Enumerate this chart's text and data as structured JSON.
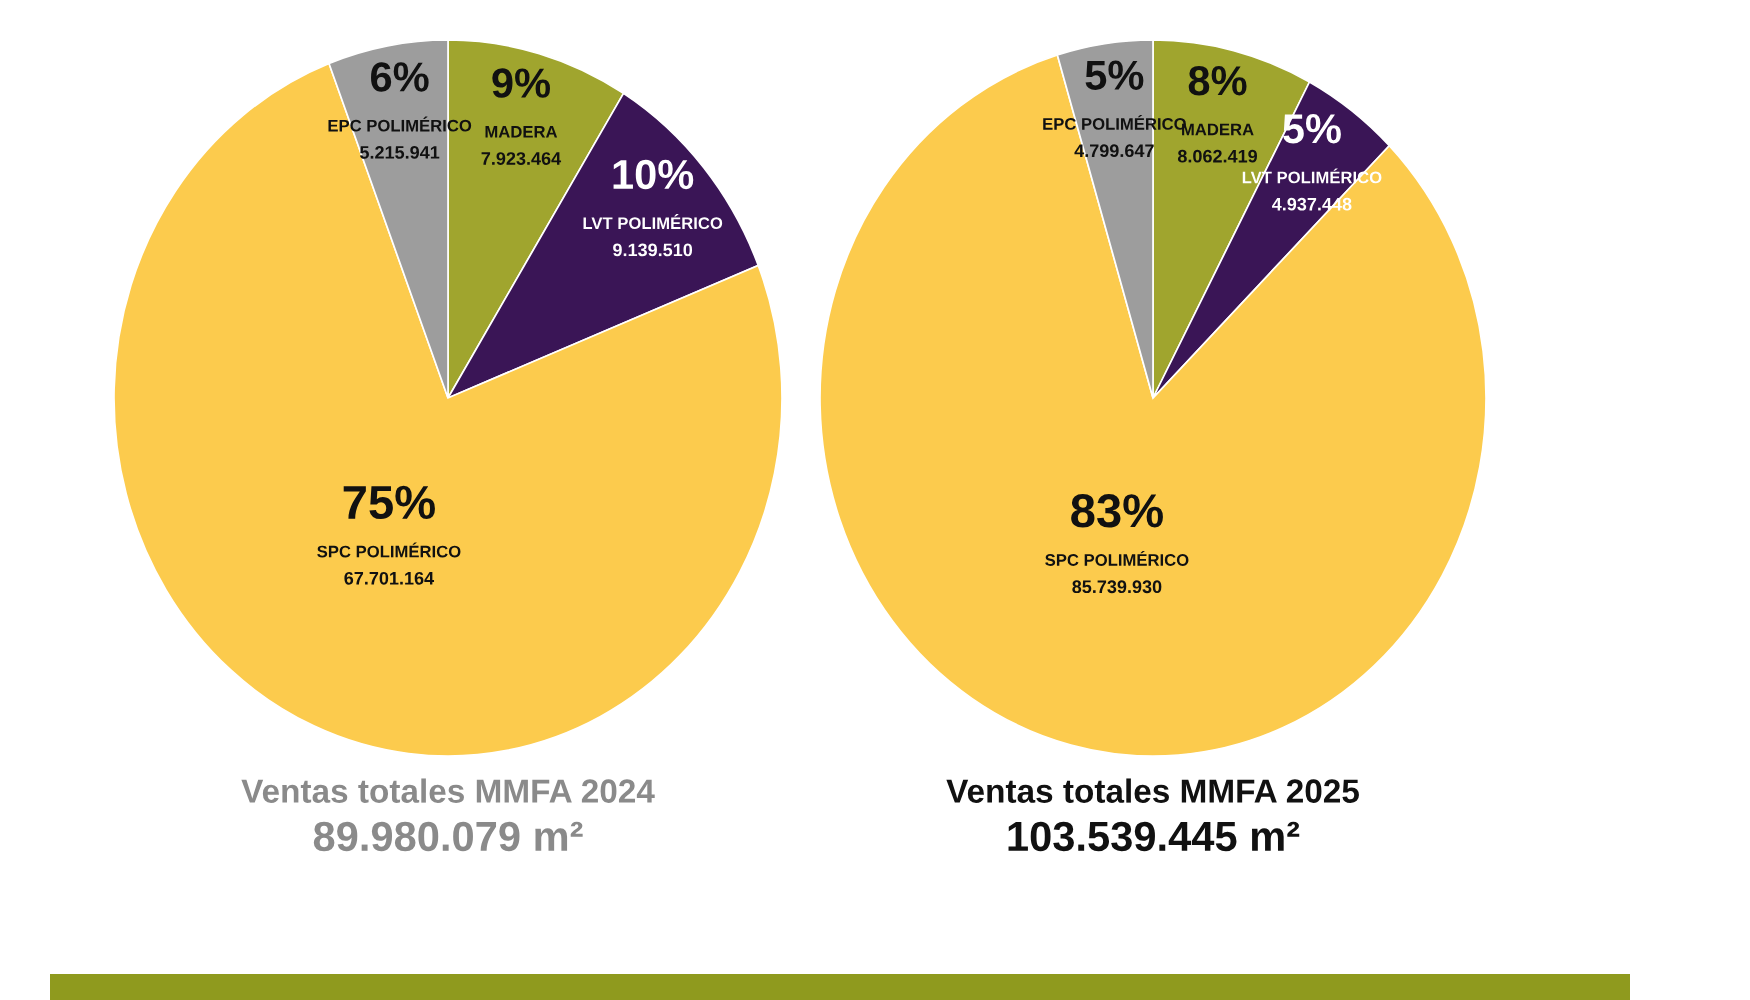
{
  "chart_data": [
    {
      "type": "pie",
      "title": "Ventas totales MMFA 2024",
      "subtitle": "89.980.079 m²",
      "categories": [
        "MADERA",
        "LVT POLIMÉRICO",
        "SPC POLIMÉRICO",
        "EPC POLIMÉRICO"
      ],
      "values": [
        7923464,
        9139510,
        67701164,
        5215941
      ],
      "colors": [
        "#a0a52e",
        "#3a1556",
        "#fccb4d",
        "#9d9d9d"
      ],
      "value_labels": [
        "7.923.464",
        "9.139.510",
        "67.701.164",
        "5.215.941"
      ],
      "annotations": [
        {
          "text": "9%",
          "x": "MADERA"
        },
        {
          "text": "10%",
          "x": "LVT POLIMÉRICO"
        },
        {
          "text": "75%",
          "x": "SPC POLIMÉRICO"
        },
        {
          "text": "6%",
          "x": "EPC POLIMÉRICO"
        }
      ]
    },
    {
      "type": "pie",
      "title": "Ventas totales MMFA 2025",
      "subtitle": "103.539.445 m²",
      "categories": [
        "MADERA",
        "LVT POLIMÉRICO",
        "SPC POLIMÉRICO",
        "EPC POLIMÉRICO"
      ],
      "values": [
        8062419,
        4937448,
        85739930,
        4799647
      ],
      "colors": [
        "#a0a52e",
        "#3a1556",
        "#fccb4d",
        "#9d9d9d"
      ],
      "value_labels": [
        "8.062.419",
        "4.937.448",
        "85.739.930",
        "4.799.647"
      ],
      "annotations": [
        {
          "text": "8%",
          "x": "MADERA"
        },
        {
          "text": "5%",
          "x": "LVT POLIMÉRICO"
        },
        {
          "text": "83%",
          "x": "SPC POLIMÉRICO"
        },
        {
          "text": "5%",
          "x": "EPC POLIMÉRICO"
        }
      ]
    }
  ]
}
